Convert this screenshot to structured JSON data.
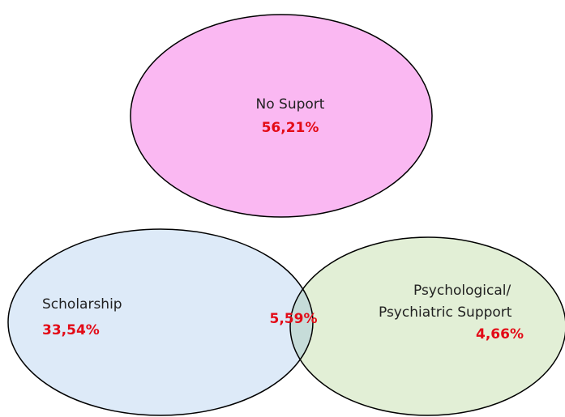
{
  "nodes": [
    {
      "label_lines": [
        "No Suport"
      ],
      "value": "56,21%"
    },
    {
      "label_lines": [
        "Scholarship"
      ],
      "value": "33,54%"
    },
    {
      "label_lines": [
        "Psychological/",
        "Psychiatric Support"
      ],
      "value": "4,66%"
    }
  ],
  "intersection": {
    "value": "5,59%"
  }
}
